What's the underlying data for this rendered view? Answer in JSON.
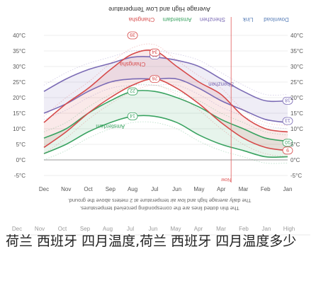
{
  "chart_data": {
    "type": "line",
    "title": "Average High and Low Temperature",
    "toolbar": [
      "Link",
      "Download"
    ],
    "legend": [
      "Shenzhen",
      "Amsterdam",
      "Changsha"
    ],
    "legend_position": "top",
    "x_categories": [
      "Dec",
      "Nov",
      "Oct",
      "Sep",
      "Aug",
      "Jul",
      "Jun",
      "May",
      "Apr",
      "Mar",
      "Feb",
      "Jan"
    ],
    "y_ticks": [
      "40°C",
      "35°C",
      "30°C",
      "25°C",
      "20°C",
      "15°C",
      "10°C",
      "5°C",
      "0°C",
      "-5°C"
    ],
    "ylim": [
      -5,
      40
    ],
    "now_label": "Now",
    "now_month": "Apr",
    "series": [
      {
        "name": "Shenzhen",
        "high": [
          22,
          26,
          29,
          31,
          33,
          33,
          32,
          30,
          26,
          22,
          19,
          19
        ],
        "low": [
          15,
          18,
          22,
          25,
          26,
          26,
          26,
          23,
          19,
          16,
          13,
          12
        ],
        "color": "#7b6bb5"
      },
      {
        "name": "Amsterdam",
        "high": [
          7,
          10,
          15,
          19,
          22,
          22,
          20,
          17,
          13,
          10,
          7,
          6
        ],
        "low": [
          2,
          5,
          9,
          12,
          14,
          14,
          12,
          8,
          5,
          3,
          1,
          1
        ],
        "color": "#3aa361"
      },
      {
        "name": "Changsha",
        "high": [
          12,
          18,
          23,
          29,
          34,
          35,
          30,
          25,
          21,
          14,
          10,
          9
        ],
        "low": [
          4,
          9,
          15,
          20,
          24,
          26,
          23,
          18,
          12,
          7,
          4,
          3
        ],
        "color": "#d64a4a"
      }
    ],
    "data_labels": [
      {
        "text": "18",
        "series": "Shenzhen"
      },
      {
        "text": "13",
        "series": "Shenzhen"
      },
      {
        "text": "32",
        "series": "Shenzhen"
      },
      {
        "text": "22",
        "series": "Amsterdam"
      },
      {
        "text": "14",
        "series": "Amsterdam"
      },
      {
        "text": "10",
        "series": "Amsterdam"
      },
      {
        "text": "34",
        "series": "Changsha"
      },
      {
        "text": "26",
        "series": "Changsha"
      },
      {
        "text": "9",
        "series": "Changsha"
      },
      {
        "text": "39",
        "series": "Changsha"
      }
    ],
    "footnote": "The daily average high and low air temperature at 2 meters above the ground. The thin dotted lines are the corresponding perceived temperatures."
  },
  "table": {
    "header": [
      "Dec",
      "Nov",
      "Oct",
      "Sep",
      "Aug",
      "Jul",
      "Jun",
      "May",
      "Apr",
      "Mar",
      "Feb",
      "Jan",
      "High"
    ]
  },
  "caption": "荷兰 西班牙 四月温度,荷兰 西班牙 四月温度多少"
}
